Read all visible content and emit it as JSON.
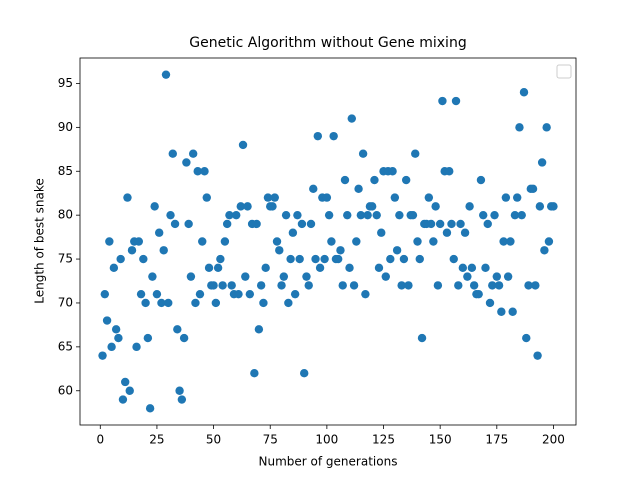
{
  "chart_data": {
    "type": "scatter",
    "title": "Genetic Algorithm without Gene mixing",
    "x_label": "Number of generations",
    "y_label": "Length of best snake",
    "color": "#1f77b4",
    "legend": "upper right",
    "grid": false,
    "xlim": [
      -8.95,
      209.95
    ],
    "ylim": [
      56.1,
      97.9
    ],
    "xticks": [
      0,
      25,
      50,
      75,
      100,
      125,
      150,
      175,
      200
    ],
    "yticks": [
      60,
      65,
      70,
      75,
      80,
      85,
      90,
      95
    ],
    "x": [
      1,
      2,
      3,
      4,
      5,
      6,
      7,
      8,
      9,
      10,
      11,
      12,
      13,
      14,
      15,
      16,
      17,
      18,
      19,
      20,
      21,
      22,
      23,
      24,
      25,
      26,
      27,
      28,
      29,
      30,
      31,
      32,
      33,
      34,
      35,
      36,
      37,
      38,
      39,
      40,
      41,
      42,
      43,
      44,
      45,
      46,
      47,
      48,
      49,
      50,
      51,
      52,
      53,
      54,
      55,
      56,
      57,
      58,
      59,
      60,
      61,
      62,
      63,
      64,
      65,
      66,
      67,
      68,
      69,
      70,
      71,
      72,
      73,
      74,
      75,
      76,
      77,
      78,
      79,
      80,
      81,
      82,
      83,
      84,
      85,
      86,
      87,
      88,
      89,
      90,
      91,
      92,
      93,
      94,
      95,
      96,
      97,
      98,
      99,
      100,
      101,
      102,
      103,
      104,
      105,
      106,
      107,
      108,
      109,
      110,
      111,
      112,
      113,
      114,
      115,
      116,
      117,
      118,
      119,
      120,
      121,
      122,
      123,
      124,
      125,
      126,
      127,
      128,
      129,
      130,
      131,
      132,
      133,
      134,
      135,
      136,
      137,
      138,
      139,
      140,
      141,
      142,
      143,
      144,
      145,
      146,
      147,
      148,
      149,
      150,
      151,
      152,
      153,
      154,
      155,
      156,
      157,
      158,
      159,
      160,
      161,
      162,
      163,
      164,
      165,
      166,
      167,
      168,
      169,
      170,
      171,
      172,
      173,
      174,
      175,
      176,
      177,
      178,
      179,
      180,
      181,
      182,
      183,
      184,
      185,
      186,
      187,
      188,
      189,
      190,
      191,
      192,
      193,
      194,
      195,
      196,
      197,
      198,
      199,
      200
    ],
    "values": [
      64,
      71,
      68,
      77,
      65,
      74,
      67,
      66,
      75,
      59,
      61,
      82,
      60,
      76,
      77,
      65,
      77,
      71,
      75,
      70,
      66,
      58,
      73,
      81,
      71,
      78,
      70,
      76,
      96,
      70,
      80,
      87,
      79,
      67,
      60,
      59,
      66,
      86,
      79,
      73,
      87,
      70,
      85,
      71,
      77,
      85,
      82,
      74,
      72,
      72,
      70,
      74,
      75,
      72,
      77,
      79,
      80,
      72,
      71,
      80,
      71,
      81,
      88,
      73,
      81,
      71,
      79,
      62,
      79,
      67,
      72,
      70,
      74,
      82,
      81,
      81,
      82,
      77,
      76,
      72,
      73,
      80,
      70,
      75,
      78,
      71,
      80,
      75,
      79,
      62,
      73,
      72,
      79,
      83,
      75,
      89,
      74,
      82,
      75,
      82,
      80,
      77,
      89,
      75,
      75,
      76,
      72,
      84,
      80,
      74,
      91,
      72,
      77,
      83,
      80,
      87,
      71,
      80,
      81,
      81,
      84,
      80,
      74,
      78,
      85,
      73,
      85,
      75,
      85,
      82,
      76,
      80,
      72,
      75,
      84,
      72,
      80,
      80,
      87,
      77,
      75,
      66,
      79,
      79,
      82,
      79,
      77,
      81,
      72,
      79,
      93,
      85,
      78,
      85,
      79,
      75,
      93,
      72,
      79,
      74,
      78,
      73,
      81,
      74,
      72,
      71,
      71,
      84,
      80,
      74,
      79,
      70,
      72,
      80,
      73,
      72,
      69,
      77,
      82,
      73,
      77,
      69,
      80,
      82,
      90,
      80,
      94,
      66,
      72,
      83,
      83,
      72,
      64,
      81,
      86,
      76,
      90,
      77,
      81,
      81
    ]
  }
}
